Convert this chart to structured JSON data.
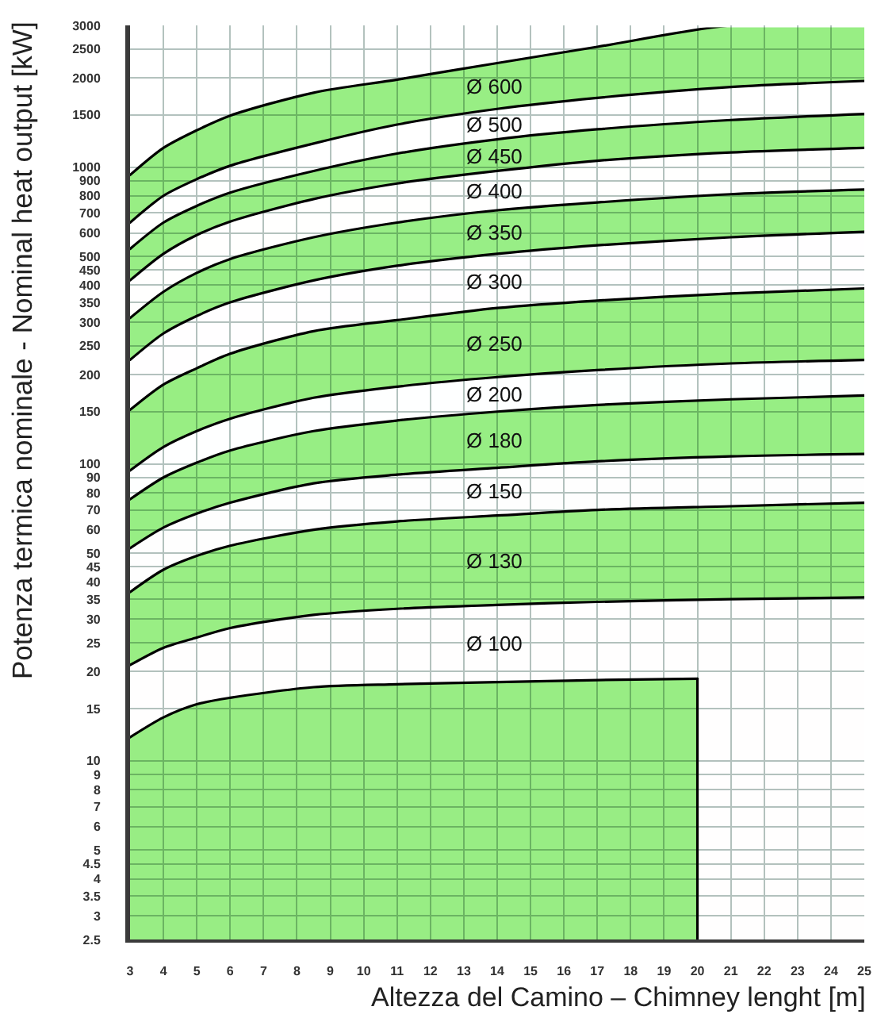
{
  "chart_data": {
    "type": "area",
    "log": true,
    "grid": true,
    "xlabel": "Altezza del Camino – Chimney lenght [m]",
    "ylabel": "Potenza termica nominale - Nominal heat output [kW]",
    "xlim": [
      3,
      25
    ],
    "ylim": [
      2.5,
      3000
    ],
    "xticks": [
      3,
      4,
      5,
      6,
      7,
      8,
      9,
      10,
      11,
      12,
      13,
      14,
      15,
      16,
      17,
      18,
      19,
      20,
      21,
      22,
      23,
      24,
      25
    ],
    "yticks": [
      2.5,
      3,
      3.5,
      4,
      4.5,
      5,
      6,
      7,
      8,
      9,
      10,
      15,
      20,
      25,
      30,
      35,
      40,
      45,
      50,
      60,
      70,
      80,
      90,
      100,
      150,
      200,
      250,
      300,
      350,
      400,
      450,
      500,
      600,
      700,
      800,
      900,
      1000,
      1500,
      2000,
      2500,
      3000
    ],
    "x": [
      3,
      4,
      5,
      6,
      8.5,
      11,
      14,
      17,
      21,
      25
    ],
    "series": [
      {
        "name": "Ø 600",
        "color": "#98ee84",
        "values": [
          940,
          1160,
          1330,
          1490,
          1780,
          1970,
          2240,
          2540,
          3000,
          3000
        ]
      },
      {
        "name": "Ø 500",
        "color": "#ffffff",
        "values": [
          650,
          800,
          910,
          1010,
          1200,
          1390,
          1570,
          1710,
          1860,
          1950
        ]
      },
      {
        "name": "Ø 450",
        "color": "#98ee85",
        "values": [
          530,
          650,
          740,
          820,
          970,
          1110,
          1240,
          1340,
          1440,
          1510
        ]
      },
      {
        "name": "Ø 400",
        "color": "#fffffe",
        "values": [
          415,
          510,
          590,
          655,
          780,
          880,
          970,
          1050,
          1120,
          1160
        ]
      },
      {
        "name": "Ø 350",
        "color": "#98ee86",
        "values": [
          310,
          380,
          440,
          490,
          580,
          650,
          715,
          760,
          810,
          840
        ]
      },
      {
        "name": "Ø 300",
        "color": "#fffeff",
        "values": [
          224,
          275,
          315,
          350,
          415,
          465,
          510,
          545,
          580,
          605
        ]
      },
      {
        "name": "Ø 250",
        "color": "#98ee83",
        "values": [
          152,
          185,
          210,
          235,
          280,
          305,
          335,
          355,
          375,
          390
        ]
      },
      {
        "name": "Ø 200",
        "color": "#feffff",
        "values": [
          95,
          114,
          129,
          142,
          167,
          182,
          196,
          207,
          218,
          224
        ]
      },
      {
        "name": "Ø 180",
        "color": "#97ee84",
        "values": [
          76,
          90,
          101,
          111,
          129,
          140,
          150,
          158,
          165,
          170
        ]
      },
      {
        "name": "Ø 150",
        "color": "#fefefe",
        "values": [
          52,
          61,
          68,
          74,
          86,
          92,
          97,
          102,
          106,
          108
        ]
      },
      {
        "name": "Ø 130",
        "color": "#99ee84",
        "values": [
          37,
          44,
          49,
          53,
          60,
          64,
          67,
          70,
          72,
          74
        ]
      },
      {
        "name": "Ø 100",
        "color": "#fffefe",
        "values": [
          21,
          24,
          26,
          28,
          31,
          32.5,
          33.5,
          34.3,
          35,
          35.5
        ]
      },
      {
        "color": "#98ed84",
        "x": [
          3,
          4,
          5,
          6,
          8.5,
          11,
          14,
          17,
          20
        ],
        "values": [
          12,
          14,
          15.5,
          16.3,
          17.7,
          18.1,
          18.4,
          18.7,
          18.9
        ]
      },
      {
        "type": "line",
        "color": "#000000",
        "x": [
          20,
          20
        ],
        "values": [
          2.5,
          18.9
        ]
      }
    ]
  }
}
